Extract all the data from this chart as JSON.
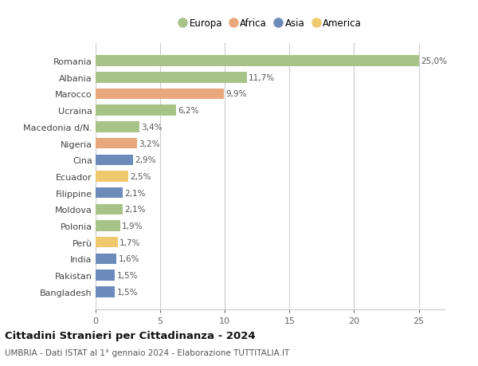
{
  "categories": [
    "Romania",
    "Albania",
    "Marocco",
    "Ucraina",
    "Macedonia d/N.",
    "Nigeria",
    "Cina",
    "Ecuador",
    "Filippine",
    "Moldova",
    "Polonia",
    "Perù",
    "India",
    "Pakistan",
    "Bangladesh"
  ],
  "values": [
    25.0,
    11.7,
    9.9,
    6.2,
    3.4,
    3.2,
    2.9,
    2.5,
    2.1,
    2.1,
    1.9,
    1.7,
    1.6,
    1.5,
    1.5
  ],
  "colors": [
    "#a8c387",
    "#a8c387",
    "#e8a87c",
    "#a8c387",
    "#a8c387",
    "#e8a87c",
    "#6b8cba",
    "#f0c96e",
    "#6b8cba",
    "#a8c387",
    "#a8c387",
    "#f0c96e",
    "#6b8cba",
    "#6b8cba",
    "#6b8cba"
  ],
  "labels": [
    "25,0%",
    "11,7%",
    "9,9%",
    "6,2%",
    "3,4%",
    "3,2%",
    "2,9%",
    "2,5%",
    "2,1%",
    "2,1%",
    "1,9%",
    "1,7%",
    "1,6%",
    "1,5%",
    "1,5%"
  ],
  "legend_labels": [
    "Europa",
    "Africa",
    "Asia",
    "America"
  ],
  "legend_colors": [
    "#a8c387",
    "#e8a87c",
    "#6b8cba",
    "#f0c96e"
  ],
  "title": "Cittadini Stranieri per Cittadinanza - 2024",
  "subtitle": "UMBRIA - Dati ISTAT al 1° gennaio 2024 - Elaborazione TUTTITALIA.IT",
  "xlim": [
    0,
    27
  ],
  "xticks": [
    0,
    5,
    10,
    15,
    20,
    25
  ],
  "background_color": "#ffffff",
  "grid_color": "#cccccc",
  "bar_height": 0.65
}
